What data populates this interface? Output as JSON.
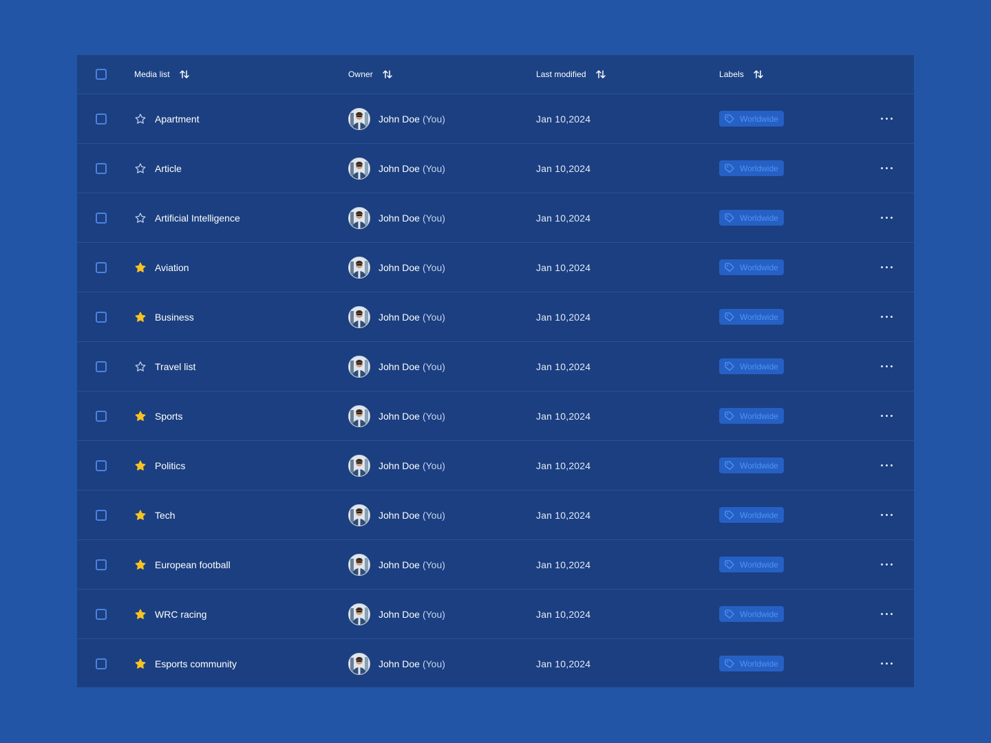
{
  "header": {
    "media_list": "Media list",
    "owner": "Owner",
    "last_modified": "Last modified",
    "labels": "Labels"
  },
  "colors": {
    "background": "#2355a6",
    "table": "#1b3f80",
    "star_filled": "#f7c224",
    "badge_bg": "#2660c4",
    "badge_text": "#4e94f3"
  },
  "rows": [
    {
      "name": "Apartment",
      "starred": false,
      "owner": "John Doe",
      "owner_suffix": "(You)",
      "date": "Jan 10,2024",
      "label": "Worldwide"
    },
    {
      "name": "Article",
      "starred": false,
      "owner": "John Doe",
      "owner_suffix": "(You)",
      "date": "Jan 10,2024",
      "label": "Worldwide"
    },
    {
      "name": "Artificial Intelligence",
      "starred": false,
      "owner": "John Doe",
      "owner_suffix": "(You)",
      "date": "Jan 10,2024",
      "label": "Worldwide"
    },
    {
      "name": "Aviation",
      "starred": true,
      "owner": "John Doe",
      "owner_suffix": "(You)",
      "date": "Jan 10,2024",
      "label": "Worldwide"
    },
    {
      "name": "Business",
      "starred": true,
      "owner": "John Doe",
      "owner_suffix": "(You)",
      "date": "Jan 10,2024",
      "label": "Worldwide"
    },
    {
      "name": "Travel list",
      "starred": false,
      "owner": "John Doe",
      "owner_suffix": "(You)",
      "date": "Jan 10,2024",
      "label": "Worldwide"
    },
    {
      "name": "Sports",
      "starred": true,
      "owner": "John Doe",
      "owner_suffix": "(You)",
      "date": "Jan 10,2024",
      "label": "Worldwide"
    },
    {
      "name": "Politics",
      "starred": true,
      "owner": "John Doe",
      "owner_suffix": "(You)",
      "date": "Jan 10,2024",
      "label": "Worldwide"
    },
    {
      "name": "Tech",
      "starred": true,
      "owner": "John Doe",
      "owner_suffix": "(You)",
      "date": "Jan 10,2024",
      "label": "Worldwide"
    },
    {
      "name": "European football",
      "starred": true,
      "owner": "John Doe",
      "owner_suffix": "(You)",
      "date": "Jan 10,2024",
      "label": "Worldwide"
    },
    {
      "name": "WRC racing",
      "starred": true,
      "owner": "John Doe",
      "owner_suffix": "(You)",
      "date": "Jan 10,2024",
      "label": "Worldwide"
    },
    {
      "name": "Esports community",
      "starred": true,
      "owner": "John Doe",
      "owner_suffix": "(You)",
      "date": "Jan 10,2024",
      "label": "Worldwide"
    }
  ]
}
